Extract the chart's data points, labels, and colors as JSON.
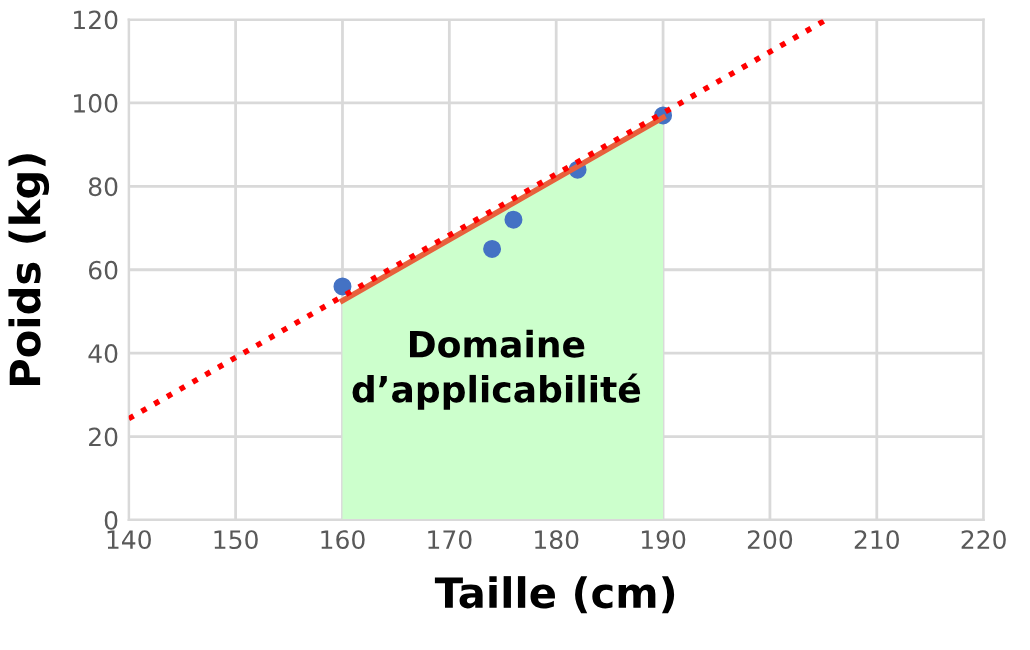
{
  "chart_data": {
    "type": "scatter",
    "xlabel": "Taille (cm)",
    "ylabel": "Poids (kg)",
    "xlim": [
      140,
      220
    ],
    "ylim": [
      0,
      120
    ],
    "xticks": [
      140,
      150,
      160,
      170,
      180,
      190,
      200,
      210,
      220
    ],
    "yticks": [
      0,
      20,
      40,
      60,
      80,
      100,
      120
    ],
    "grid": true,
    "series": [
      {
        "type": "area",
        "color": "#ccffcc",
        "x": [
          160,
          190
        ],
        "values": [
          52.6,
          96.5
        ]
      },
      {
        "color": "#4472c4",
        "marker": "circle",
        "x": [
          160,
          174,
          176,
          182,
          190
        ],
        "values": [
          56,
          65,
          72,
          84,
          97
        ]
      },
      {
        "type": "line",
        "color": "#e8603c",
        "line_style": "solid",
        "x": [
          160,
          190
        ],
        "values": [
          52.6,
          96.5
        ]
      },
      {
        "type": "line",
        "color": "#ff0000",
        "line_style": "dotted",
        "x": [
          140,
          205.3
        ],
        "values": [
          24.3,
          120
        ]
      }
    ],
    "annotations": [
      "Domaine\nd’applicabilité"
    ]
  }
}
